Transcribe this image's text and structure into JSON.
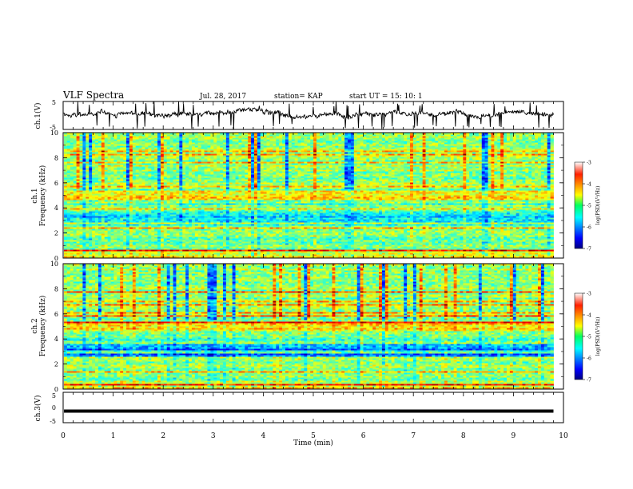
{
  "header": {
    "title": "VLF Spectra",
    "date": "Jul. 28, 2017",
    "station": "station= KAP",
    "start_ut": "start UT =  15: 10: 1"
  },
  "chart_data": [
    {
      "type": "line",
      "id": "ch1-waveform",
      "ylabel": "ch.1(V)",
      "ylim": [
        -5,
        5
      ],
      "y_ticks": [
        "5",
        "-5"
      ],
      "x_range_min": [
        0,
        9.8
      ],
      "trace_color": "#000000",
      "approx_baseline_v": 0.5,
      "approx_amplitude_v": 3.5
    },
    {
      "type": "heatmap",
      "id": "ch1-spectrogram",
      "ylabel": "ch.1\nFrequency (kHz)",
      "ylabel_lines": [
        "ch.1",
        "Frequency (kHz)"
      ],
      "ylim": [
        0,
        10
      ],
      "y_ticks": [
        "0",
        "2",
        "4",
        "6",
        "8",
        "10"
      ],
      "x_range_min": [
        0,
        9.8
      ],
      "colorbar": {
        "label": "log(PSD)(V²/Hz)",
        "range": [
          -7,
          -3
        ],
        "ticks": [
          "-3",
          "-4",
          "-5",
          "-6",
          "-7"
        ],
        "colormap": "jet"
      }
    },
    {
      "type": "heatmap",
      "id": "ch2-spectrogram",
      "ylabel": "ch.2\nFrequency (kHz)",
      "ylabel_lines": [
        "ch.2",
        "Frequency (kHz)"
      ],
      "ylim": [
        0,
        10
      ],
      "y_ticks": [
        "0",
        "2",
        "4",
        "6",
        "8",
        "10"
      ],
      "x_range_min": [
        0,
        9.8
      ],
      "colorbar": {
        "label": "log(PSD)(V²/Hz)",
        "range": [
          -7,
          -3
        ],
        "ticks": [
          "-3",
          "-4",
          "-5",
          "-6",
          "-7"
        ],
        "colormap": "jet"
      }
    },
    {
      "type": "line",
      "id": "ch3-waveform",
      "ylabel": "ch.3(V)",
      "ylim": [
        -5,
        5
      ],
      "y_ticks": [
        "5",
        "0",
        "-5"
      ],
      "x_range_min": [
        0,
        9.8
      ],
      "trace_color": "#000000",
      "constant_value_v": -1.2
    }
  ],
  "x_axis": {
    "label": "Time (min)",
    "range": [
      0,
      10
    ],
    "tick_labels": [
      "0",
      "1",
      "2",
      "3",
      "4",
      "5",
      "6",
      "7",
      "8",
      "9",
      "10"
    ]
  }
}
